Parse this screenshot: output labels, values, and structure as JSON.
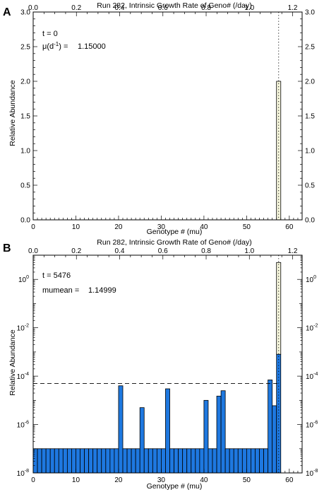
{
  "chart_data": [
    {
      "panel_label": "A",
      "type": "bar",
      "title": "Run 282, Intrinsic Growth Rate of Geno# (/day)",
      "xlabel": "Genotype # (mu)",
      "ylabel": "Relative Abundance",
      "xlim": [
        0,
        63
      ],
      "ylim": [
        0,
        3
      ],
      "top_axis_lim": [
        0,
        1.244
      ],
      "x_ticks": [
        "0",
        "10",
        "20",
        "30",
        "40",
        "50",
        "60"
      ],
      "top_ticks": [
        "0.0",
        "0.2",
        "0.4",
        "0.6",
        "0.8",
        "1.0",
        "1.2"
      ],
      "y_ticks": [
        "0.0",
        "0.5",
        "1.0",
        "1.5",
        "2.0",
        "2.5",
        "3.0"
      ],
      "y_scale": "linear",
      "annotations": {
        "t_line": "t = 0",
        "mu_prefix": "μ(d",
        "mu_sup": "-1",
        "mu_suffix": ") =",
        "mu_value": "1.15000"
      },
      "bars": [
        {
          "x": 57,
          "value": 2.0,
          "color": "#f5f5dc"
        }
      ],
      "reference_lines": [
        {
          "orientation": "vertical",
          "style": "dotted",
          "x": 57.5
        }
      ]
    },
    {
      "panel_label": "B",
      "type": "bar",
      "title": "Run 282, Intrinsic Growth Rate of Geno# (/day)",
      "xlabel": "Genotype # (mu)",
      "ylabel": "Relative Abundance",
      "xlim": [
        0,
        63
      ],
      "ylim": [
        1e-08,
        10
      ],
      "top_axis_lim": [
        0,
        1.244
      ],
      "x_ticks": [
        "0",
        "10",
        "20",
        "30",
        "40",
        "50",
        "60"
      ],
      "top_ticks": [
        "0.0",
        "0.2",
        "0.4",
        "0.6",
        "0.8",
        "1.0",
        "1.2"
      ],
      "y_ticks": [
        "-8",
        "-6",
        "-4",
        "-2",
        "0"
      ],
      "y_scale": "log",
      "annotations": {
        "t_line": "t = 5476",
        "mu_prefix": "mumean =",
        "mu_value": "1.14999"
      },
      "bar_color": "#1e78e0",
      "baseline_value": 1e-07,
      "bars_x": [
        0,
        1,
        2,
        3,
        4,
        5,
        6,
        7,
        8,
        9,
        10,
        11,
        12,
        13,
        14,
        15,
        16,
        17,
        18,
        19,
        20,
        21,
        22,
        23,
        24,
        25,
        26,
        27,
        28,
        29,
        30,
        31,
        32,
        33,
        34,
        35,
        36,
        37,
        38,
        39,
        40,
        41,
        42,
        43,
        44,
        45,
        46,
        47,
        48,
        49,
        50,
        51,
        52,
        53,
        54,
        55,
        56,
        57
      ],
      "bars_values": [
        1e-07,
        1e-07,
        1e-07,
        1e-07,
        1e-07,
        1e-07,
        1e-07,
        1e-07,
        1e-07,
        1e-07,
        1e-07,
        1e-07,
        1e-07,
        1e-07,
        1e-07,
        1e-07,
        1e-07,
        1e-07,
        1e-07,
        1e-07,
        4e-05,
        1e-07,
        1e-07,
        1e-07,
        1e-07,
        5e-06,
        1e-07,
        1e-07,
        1e-07,
        1e-07,
        1e-07,
        3e-05,
        1e-07,
        1e-07,
        1e-07,
        1e-07,
        1e-07,
        1e-07,
        1e-07,
        1e-07,
        1e-05,
        1e-07,
        1e-07,
        1.5e-05,
        2.5e-05,
        1e-07,
        1e-07,
        1e-07,
        1e-07,
        1e-07,
        1e-07,
        1e-07,
        1e-07,
        1e-07,
        1e-07,
        7e-05,
        6e-06,
        0.0008
      ],
      "dominant_bar": {
        "x": 57,
        "value": 5,
        "color": "#f5f5dc"
      },
      "reference_lines": [
        {
          "orientation": "horizontal",
          "style": "dashed",
          "y": 5e-05
        },
        {
          "orientation": "vertical",
          "style": "dotted",
          "x": 57.5
        }
      ]
    }
  ]
}
